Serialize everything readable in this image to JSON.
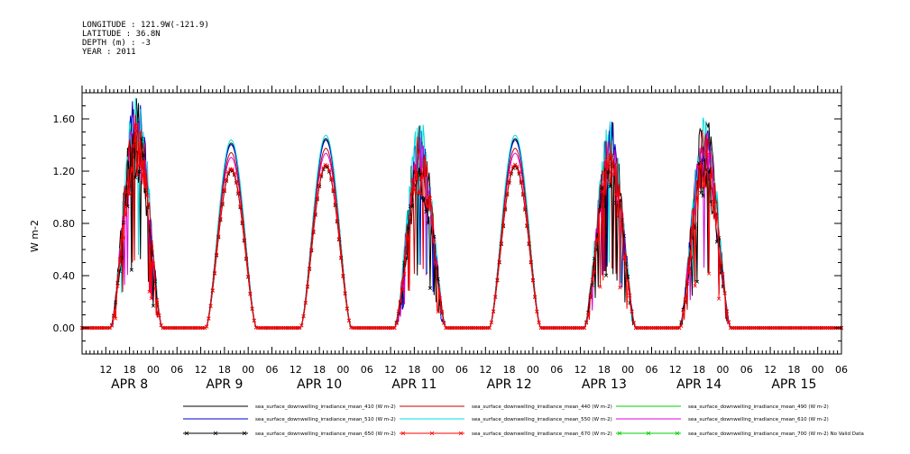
{
  "header": {
    "longitude": "LONGITUDE : 121.9W(-121.9)",
    "latitude": "LATITUDE : 36.8N",
    "depth": "DEPTH (m) : -3",
    "year": "YEAR : 2011"
  },
  "chart_data": {
    "type": "line",
    "title": "",
    "xlabel": "",
    "ylabel": "W m-2",
    "ylim": [
      -0.2,
      1.8
    ],
    "yticks": [
      "0.00",
      "0.40",
      "0.80",
      "1.20",
      "1.60"
    ],
    "ytick_values": [
      0.0,
      0.4,
      0.8,
      1.2,
      1.6
    ],
    "x_hour_ticks": [
      "12",
      "18",
      "00",
      "06",
      "12",
      "18",
      "00",
      "06",
      "12",
      "18",
      "00",
      "06",
      "12",
      "18",
      "00",
      "06",
      "12",
      "18",
      "00",
      "06",
      "12",
      "18",
      "00",
      "06",
      "12",
      "18",
      "00",
      "06",
      "12",
      "18",
      "00",
      "06"
    ],
    "x_date_labels": [
      "APR  8",
      "APR  9",
      "APR 10",
      "APR 11",
      "APR 12",
      "APR 13",
      "APR 14",
      "APR 15"
    ],
    "x_range_hours": [
      174,
      366
    ],
    "grid": false,
    "legend_position": "bottom",
    "days": [
      {
        "label": "APR 8",
        "rise": 181.2,
        "set": 194.3,
        "peak": 1.38,
        "cloudy": true
      },
      {
        "label": "APR 9",
        "rise": 205.3,
        "set": 218.1,
        "peak": 1.22,
        "cloudy": false
      },
      {
        "label": "APR 10",
        "rise": 229.2,
        "set": 242.1,
        "peak": 1.25,
        "cloudy": false
      },
      {
        "label": "APR 11",
        "rise": 253.0,
        "set": 266.0,
        "peak": 1.2,
        "cloudy": true
      },
      {
        "label": "APR 12",
        "rise": 277.0,
        "set": 290.0,
        "peak": 1.25,
        "cloudy": false
      },
      {
        "label": "APR 13",
        "rise": 301.0,
        "set": 314.0,
        "peak": 1.22,
        "cloudy": true
      },
      {
        "label": "APR 14",
        "rise": 325.0,
        "set": 338.0,
        "peak": 1.25,
        "cloudy": true
      }
    ],
    "series": [
      {
        "name": "sea_surface_downwelling_irradiance_mean_410 (W m-2)",
        "color": "#000000",
        "scale": 1.16,
        "marker": "none"
      },
      {
        "name": "sea_surface_downwelling_irradiance_mean_440 (W m-2)",
        "color": "#cc0000",
        "scale": 1.1,
        "marker": "none"
      },
      {
        "name": "sea_surface_downwelling_irradiance_mean_490 (W m-2)",
        "color": "#00cc00",
        "scale": 1.13,
        "marker": "none"
      },
      {
        "name": "sea_surface_downwelling_irradiance_mean_510 (W m-2)",
        "color": "#0000cc",
        "scale": 1.15,
        "marker": "none"
      },
      {
        "name": "sea_surface_downwelling_irradiance_mean_550 (W m-2)",
        "color": "#00dddd",
        "scale": 1.18,
        "marker": "none"
      },
      {
        "name": "sea_surface_downwelling_irradiance_mean_610 (W m-2)",
        "color": "#dd00dd",
        "scale": 1.07,
        "marker": "none"
      },
      {
        "name": "sea_surface_downwelling_irradiance_mean_650 (W m-2)",
        "color": "#000000",
        "scale": 0.99,
        "marker": "x"
      },
      {
        "name": "sea_surface_downwelling_irradiance_mean_670 (W m-2)",
        "color": "#ff0000",
        "scale": 1.0,
        "marker": "x"
      },
      {
        "name": "sea_surface_downwelling_irradiance_mean_700 (W m-2) No Valid Data",
        "color": "#00cc00",
        "scale": 0,
        "marker": "x"
      }
    ]
  }
}
